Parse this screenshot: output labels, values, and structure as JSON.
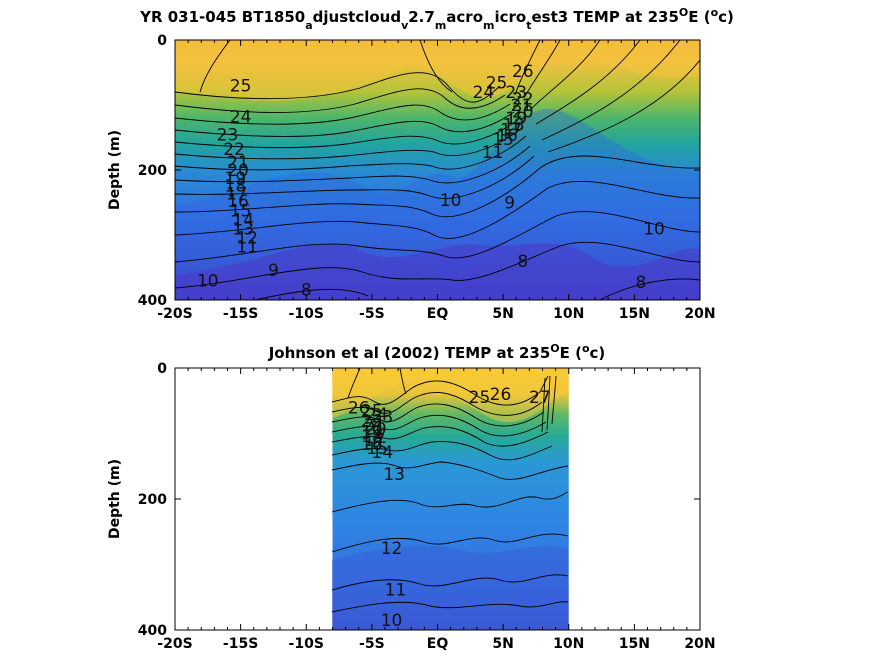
{
  "chart_data": [
    {
      "type": "heatmap",
      "title_main": "YR 031-045 BT1850",
      "title_parts": [
        {
          "text": "YR 031-045 BT1850",
          "sub": false
        },
        {
          "text": "a",
          "sub": true
        },
        {
          "text": "djustcloud",
          "sub": false
        },
        {
          "text": "v",
          "sub": true
        },
        {
          "text": "2.7",
          "sub": false
        },
        {
          "text": "m",
          "sub": true
        },
        {
          "text": "acro",
          "sub": false
        },
        {
          "text": "m",
          "sub": true
        },
        {
          "text": "icro",
          "sub": false
        },
        {
          "text": "t",
          "sub": true
        },
        {
          "text": "est3 TEMP at 235",
          "sub": false
        },
        {
          "text": "O",
          "sup": true
        },
        {
          "text": "E (",
          "sub": false
        },
        {
          "text": "o",
          "sup": true
        },
        {
          "text": "c)",
          "sub": false
        }
      ],
      "ylabel": "Depth (m)",
      "xlim": [
        -20,
        20
      ],
      "ylim": [
        400,
        0
      ],
      "x_ticks": [
        "-20S",
        "-15S",
        "-10S",
        "-5S",
        "EQ",
        "5N",
        "10N",
        "15N",
        "20N"
      ],
      "y_ticks": [
        "0",
        "200",
        "400"
      ],
      "data_extent": [
        -20,
        20
      ],
      "contour_labels": [
        {
          "text": "25",
          "lat": -15,
          "depth": 70
        },
        {
          "text": "24",
          "lat": -15,
          "depth": 118
        },
        {
          "text": "23",
          "lat": -16,
          "depth": 145
        },
        {
          "text": "22",
          "lat": -15.5,
          "depth": 168
        },
        {
          "text": "21",
          "lat": -15.2,
          "depth": 188
        },
        {
          "text": "20",
          "lat": -15.2,
          "depth": 200
        },
        {
          "text": "19",
          "lat": -15.4,
          "depth": 212
        },
        {
          "text": "18",
          "lat": -15.4,
          "depth": 224
        },
        {
          "text": "17",
          "lat": -15.3,
          "depth": 236
        },
        {
          "text": "16",
          "lat": -15.2,
          "depth": 248
        },
        {
          "text": "15",
          "lat": -15,
          "depth": 262
        },
        {
          "text": "14",
          "lat": -14.8,
          "depth": 276
        },
        {
          "text": "13",
          "lat": -14.8,
          "depth": 290
        },
        {
          "text": "12",
          "lat": -14.5,
          "depth": 304
        },
        {
          "text": "11",
          "lat": -14.5,
          "depth": 318
        },
        {
          "text": "10",
          "lat": -17.5,
          "depth": 370
        },
        {
          "text": "9",
          "lat": -12.5,
          "depth": 354
        },
        {
          "text": "8",
          "lat": -10,
          "depth": 384
        },
        {
          "text": "10",
          "lat": 1,
          "depth": 246
        },
        {
          "text": "9",
          "lat": 5.5,
          "depth": 250
        },
        {
          "text": "10",
          "lat": 16.5,
          "depth": 290
        },
        {
          "text": "8",
          "lat": 6.5,
          "depth": 340
        },
        {
          "text": "8",
          "lat": 15.5,
          "depth": 372
        },
        {
          "text": "26",
          "lat": 6.5,
          "depth": 48
        },
        {
          "text": "25",
          "lat": 4.5,
          "depth": 65
        },
        {
          "text": "24",
          "lat": 3.5,
          "depth": 80
        },
        {
          "text": "23",
          "lat": 6,
          "depth": 80
        },
        {
          "text": "22",
          "lat": 6.5,
          "depth": 90
        },
        {
          "text": "21",
          "lat": 6.4,
          "depth": 100
        },
        {
          "text": "20",
          "lat": 6.5,
          "depth": 110
        },
        {
          "text": "19",
          "lat": 6,
          "depth": 120
        },
        {
          "text": "18",
          "lat": 5.8,
          "depth": 130
        },
        {
          "text": "17",
          "lat": 5.6,
          "depth": 138
        },
        {
          "text": "16",
          "lat": 5.3,
          "depth": 146
        },
        {
          "text": "15",
          "lat": 5,
          "depth": 152
        },
        {
          "text": "11",
          "lat": 4.2,
          "depth": 172
        }
      ]
    },
    {
      "type": "heatmap",
      "title_main": "Johnson et al (2002) TEMP at 235",
      "title_parts": [
        {
          "text": "Johnson et al (2002) TEMP at 235",
          "sub": false
        },
        {
          "text": "O",
          "sup": true
        },
        {
          "text": "E (",
          "sub": false
        },
        {
          "text": "o",
          "sup": true
        },
        {
          "text": "c)",
          "sub": false
        }
      ],
      "ylabel": "Depth (m)",
      "xlim": [
        -20,
        20
      ],
      "ylim": [
        400,
        0
      ],
      "x_ticks": [
        "-20S",
        "-15S",
        "-10S",
        "-5S",
        "EQ",
        "5N",
        "10N",
        "15N",
        "20N"
      ],
      "y_ticks": [
        "0",
        "200",
        "400"
      ],
      "data_extent": [
        -8,
        10
      ],
      "contour_labels": [
        {
          "text": "26",
          "lat": -6,
          "depth": 60
        },
        {
          "text": "25",
          "lat": -5,
          "depth": 65
        },
        {
          "text": "24",
          "lat": -4.6,
          "depth": 70
        },
        {
          "text": "23",
          "lat": -4.2,
          "depth": 74
        },
        {
          "text": "22",
          "lat": -5,
          "depth": 80
        },
        {
          "text": "21",
          "lat": -4.8,
          "depth": 86
        },
        {
          "text": "20",
          "lat": -4.7,
          "depth": 92
        },
        {
          "text": "19",
          "lat": -5,
          "depth": 98
        },
        {
          "text": "18",
          "lat": -5,
          "depth": 104
        },
        {
          "text": "17",
          "lat": -4.8,
          "depth": 110
        },
        {
          "text": "16",
          "lat": -5,
          "depth": 116
        },
        {
          "text": "15",
          "lat": -4.6,
          "depth": 122
        },
        {
          "text": "14",
          "lat": -4.2,
          "depth": 128
        },
        {
          "text": "13",
          "lat": -3.3,
          "depth": 162
        },
        {
          "text": "12",
          "lat": -3.5,
          "depth": 275
        },
        {
          "text": "11",
          "lat": -3.2,
          "depth": 338
        },
        {
          "text": "10",
          "lat": -3.5,
          "depth": 385
        },
        {
          "text": "25",
          "lat": 3.2,
          "depth": 44
        },
        {
          "text": "26",
          "lat": 4.8,
          "depth": 40
        },
        {
          "text": "27",
          "lat": 7.8,
          "depth": 44
        }
      ]
    }
  ]
}
